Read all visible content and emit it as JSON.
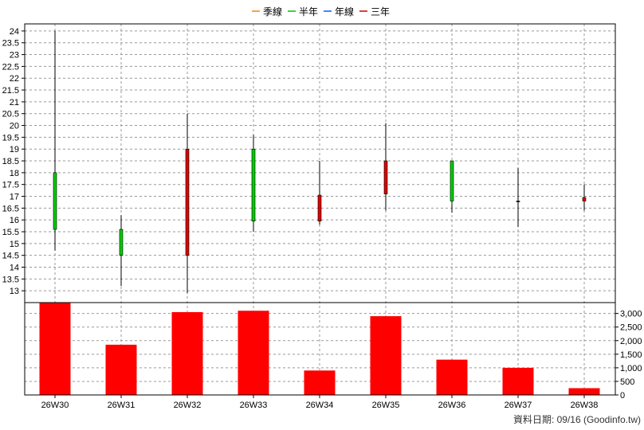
{
  "legend": [
    {
      "label": "季線",
      "color": "#ff8000"
    },
    {
      "label": "半年",
      "color": "#00c000"
    },
    {
      "label": "年線",
      "color": "#0060ff"
    },
    {
      "label": "三年",
      "color": "#d00000"
    }
  ],
  "footer": "資料日期: 09/16  (Goodinfo.tw)",
  "colors": {
    "up": "#dd0000",
    "down": "#00cc00",
    "volume": "#ff0000",
    "grid": "#999999"
  },
  "chart_data": [
    {
      "type": "candlestick",
      "title": "",
      "categories": [
        "26W30",
        "26W31",
        "26W32",
        "26W33",
        "26W34",
        "26W35",
        "26W36",
        "26W37",
        "26W38"
      ],
      "ohlc": [
        {
          "open": 18.0,
          "high": 24.0,
          "low": 14.7,
          "close": 15.6
        },
        {
          "open": 15.6,
          "high": 16.2,
          "low": 13.2,
          "close": 14.5
        },
        {
          "open": 14.5,
          "high": 20.5,
          "low": 12.9,
          "close": 19.0
        },
        {
          "open": 19.0,
          "high": 19.6,
          "low": 15.5,
          "close": 15.95
        },
        {
          "open": 15.95,
          "high": 18.5,
          "low": 15.8,
          "close": 17.05
        },
        {
          "open": 17.1,
          "high": 20.1,
          "low": 16.4,
          "close": 18.5
        },
        {
          "open": 18.5,
          "high": 18.5,
          "low": 16.3,
          "close": 16.8
        },
        {
          "open": 16.8,
          "high": 18.2,
          "low": 15.7,
          "close": 16.8
        },
        {
          "open": 16.8,
          "high": 17.5,
          "low": 16.4,
          "close": 16.95
        }
      ],
      "ylim": [
        12.5,
        24.3
      ],
      "yticks": [
        "13",
        "13.5",
        "14",
        "14.5",
        "15",
        "15.5",
        "16",
        "16.5",
        "17",
        "17.5",
        "18",
        "18.5",
        "19",
        "19.5",
        "20",
        "20.5",
        "21",
        "21.5",
        "22",
        "22.5",
        "23",
        "23.5",
        "24"
      ],
      "grid": true
    },
    {
      "type": "bar",
      "title": "",
      "categories": [
        "26W30",
        "26W31",
        "26W32",
        "26W33",
        "26W34",
        "26W35",
        "26W36",
        "26W37",
        "26W38"
      ],
      "values": [
        3400,
        1850,
        3050,
        3100,
        900,
        2900,
        1300,
        1000,
        250
      ],
      "ylim": [
        0,
        3400
      ],
      "yticks": [
        "0",
        "500",
        "1,000",
        "1,500",
        "2,000",
        "2,500",
        "3,000"
      ],
      "grid": true
    }
  ]
}
